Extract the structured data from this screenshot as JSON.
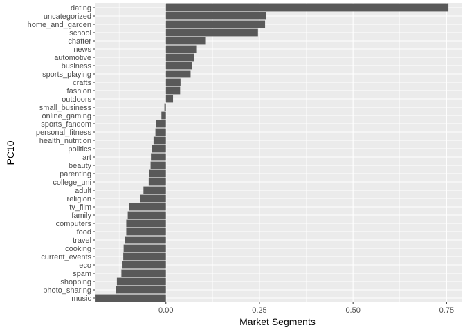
{
  "chart_data": {
    "type": "bar",
    "orientation": "horizontal",
    "title": "",
    "xlabel": "Market Segments",
    "ylabel": "PC10",
    "xlim": [
      -0.19,
      0.79
    ],
    "xticks": [
      0,
      0.25,
      0.5,
      0.75
    ],
    "xtick_labels": [
      "0.00",
      "0.25",
      "0.50",
      "0.75"
    ],
    "grid": true,
    "legend": "none",
    "colors": {
      "panel": "#ebebeb",
      "grid_major": "#ffffff",
      "bar": "#595959",
      "tick_text": "#4d4d4d",
      "tick_mark": "#333333",
      "title_text": "#000000"
    },
    "categories": [
      "dating",
      "uncategorized",
      "home_and_garden",
      "school",
      "chatter",
      "news",
      "automotive",
      "business",
      "sports_playing",
      "crafts",
      "fashion",
      "outdoors",
      "small_business",
      "online_gaming",
      "sports_fandom",
      "personal_fitness",
      "health_nutrition",
      "politics",
      "art",
      "beauty",
      "parenting",
      "college_uni",
      "adult",
      "religion",
      "tv_film",
      "family",
      "computers",
      "food",
      "travel",
      "cooking",
      "current_events",
      "eco",
      "spam",
      "shopping",
      "photo_sharing",
      "music"
    ],
    "values": [
      0.755,
      0.268,
      0.265,
      0.246,
      0.105,
      0.081,
      0.075,
      0.069,
      0.066,
      0.039,
      0.038,
      0.019,
      -0.004,
      -0.012,
      -0.027,
      -0.028,
      -0.033,
      -0.037,
      -0.04,
      -0.041,
      -0.044,
      -0.046,
      -0.06,
      -0.068,
      -0.098,
      -0.102,
      -0.106,
      -0.106,
      -0.109,
      -0.113,
      -0.114,
      -0.116,
      -0.119,
      -0.131,
      -0.133,
      -0.188
    ]
  }
}
